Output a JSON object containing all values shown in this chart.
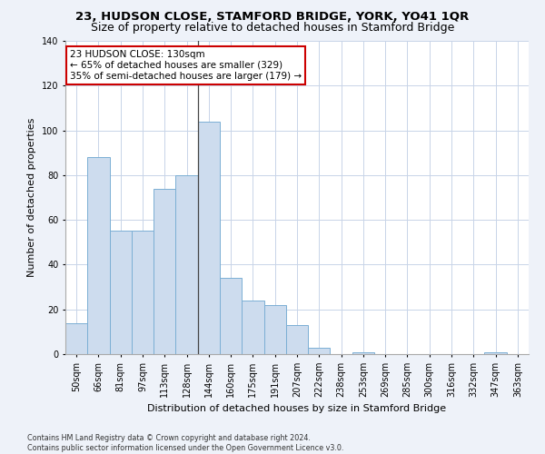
{
  "title": "23, HUDSON CLOSE, STAMFORD BRIDGE, YORK, YO41 1QR",
  "subtitle": "Size of property relative to detached houses in Stamford Bridge",
  "xlabel": "Distribution of detached houses by size in Stamford Bridge",
  "ylabel": "Number of detached properties",
  "categories": [
    "50sqm",
    "66sqm",
    "81sqm",
    "97sqm",
    "113sqm",
    "128sqm",
    "144sqm",
    "160sqm",
    "175sqm",
    "191sqm",
    "207sqm",
    "222sqm",
    "238sqm",
    "253sqm",
    "269sqm",
    "285sqm",
    "300sqm",
    "316sqm",
    "332sqm",
    "347sqm",
    "363sqm"
  ],
  "values": [
    14,
    88,
    55,
    55,
    74,
    80,
    104,
    34,
    24,
    22,
    13,
    3,
    0,
    1,
    0,
    0,
    0,
    0,
    0,
    1,
    0
  ],
  "bar_color": "#cddcee",
  "bar_edge_color": "#7bafd4",
  "annotation_text": "23 HUDSON CLOSE: 130sqm\n← 65% of detached houses are smaller (329)\n35% of semi-detached houses are larger (179) →",
  "annotation_box_color": "#ffffff",
  "annotation_box_edge_color": "#cc0000",
  "vline_x": 5.5,
  "ylim": [
    0,
    140
  ],
  "yticks": [
    0,
    20,
    40,
    60,
    80,
    100,
    120,
    140
  ],
  "footer_line1": "Contains HM Land Registry data © Crown copyright and database right 2024.",
  "footer_line2": "Contains public sector information licensed under the Open Government Licence v3.0.",
  "background_color": "#eef2f9",
  "plot_bg_color": "#ffffff",
  "grid_color": "#c8d4e8",
  "title_fontsize": 9.5,
  "tick_fontsize": 7,
  "ylabel_fontsize": 8,
  "xlabel_fontsize": 8,
  "annotation_fontsize": 7.5,
  "footer_fontsize": 5.8
}
